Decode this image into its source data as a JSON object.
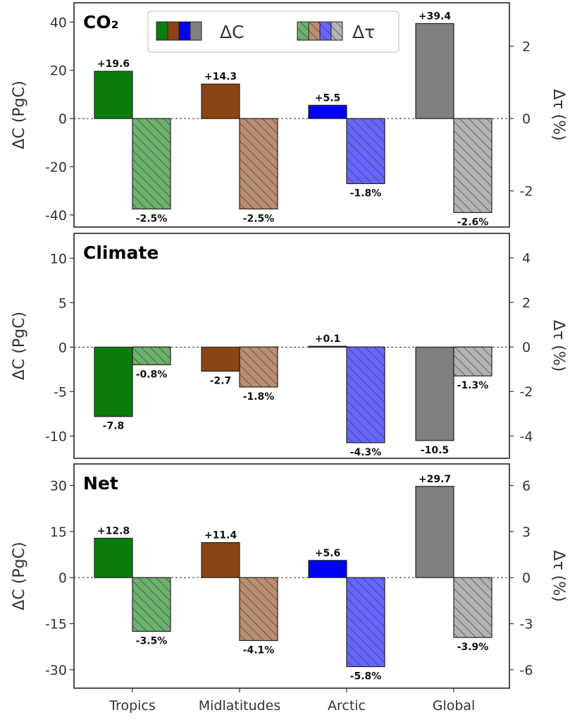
{
  "colors": {
    "tropics": "#0a7d0a",
    "midlatitudes": "#8b4513",
    "arctic": "#0000ff",
    "global": "#808080"
  },
  "legend": {
    "dC_label": "ΔC",
    "dtau_label": "Δτ"
  },
  "categories": [
    "Tropics",
    "Midlatitudes",
    "Arctic",
    "Global"
  ],
  "chart_data": [
    {
      "type": "bar",
      "title": "CO₂",
      "ylabel_left": "ΔC (PgC)",
      "ylabel_right": "Δτ (%)",
      "left_ylim": [
        -45,
        48
      ],
      "left_ticks": [
        40,
        20,
        0,
        -20,
        -40
      ],
      "right_ylim": [
        -3.0,
        3.2
      ],
      "right_ticks": [
        2,
        0,
        -2
      ],
      "categories": [
        "Tropics",
        "Midlatitudes",
        "Arctic",
        "Global"
      ],
      "series": [
        {
          "name": "ΔC",
          "axis": "left",
          "values": [
            19.6,
            14.3,
            5.5,
            39.4
          ],
          "labels": [
            "+19.6",
            "+14.3",
            "+5.5",
            "+39.4"
          ]
        },
        {
          "name": "Δτ",
          "axis": "right",
          "values": [
            -2.5,
            -2.5,
            -1.8,
            -2.6
          ],
          "labels": [
            "-2.5%",
            "-2.5%",
            "-1.8%",
            "-2.6%"
          ]
        }
      ]
    },
    {
      "type": "bar",
      "title": "Climate",
      "ylabel_left": "ΔC (PgC)",
      "ylabel_right": "Δτ (%)",
      "left_ylim": [
        -12.5,
        12.8
      ],
      "left_ticks": [
        10,
        5,
        0,
        -5,
        -10
      ],
      "right_ylim": [
        -5.0,
        5.1
      ],
      "right_ticks": [
        4,
        2,
        0,
        -2,
        -4
      ],
      "categories": [
        "Tropics",
        "Midlatitudes",
        "Arctic",
        "Global"
      ],
      "series": [
        {
          "name": "ΔC",
          "axis": "left",
          "values": [
            -7.8,
            -2.7,
            0.1,
            -10.5
          ],
          "labels": [
            "-7.8",
            "-2.7",
            "+0.1",
            "-10.5"
          ]
        },
        {
          "name": "Δτ",
          "axis": "right",
          "values": [
            -0.8,
            -1.8,
            -4.3,
            -1.3
          ],
          "labels": [
            "-0.8%",
            "-1.8%",
            "-4.3%",
            "-1.3%"
          ]
        }
      ]
    },
    {
      "type": "bar",
      "title": "Net",
      "ylabel_left": "ΔC (PgC)",
      "ylabel_right": "Δτ (%)",
      "left_ylim": [
        -36,
        37
      ],
      "left_ticks": [
        30,
        15,
        0,
        -15,
        -30
      ],
      "right_ylim": [
        -7.2,
        7.4
      ],
      "right_ticks": [
        6,
        3,
        0,
        -3,
        -6
      ],
      "categories": [
        "Tropics",
        "Midlatitudes",
        "Arctic",
        "Global"
      ],
      "series": [
        {
          "name": "ΔC",
          "axis": "left",
          "values": [
            12.8,
            11.4,
            5.6,
            29.7
          ],
          "labels": [
            "+12.8",
            "+11.4",
            "+5.6",
            "+29.7"
          ]
        },
        {
          "name": "Δτ",
          "axis": "right",
          "values": [
            -3.5,
            -4.1,
            -5.8,
            -3.9
          ],
          "labels": [
            "-3.5%",
            "-4.1%",
            "-5.8%",
            "-3.9%"
          ]
        }
      ]
    }
  ]
}
